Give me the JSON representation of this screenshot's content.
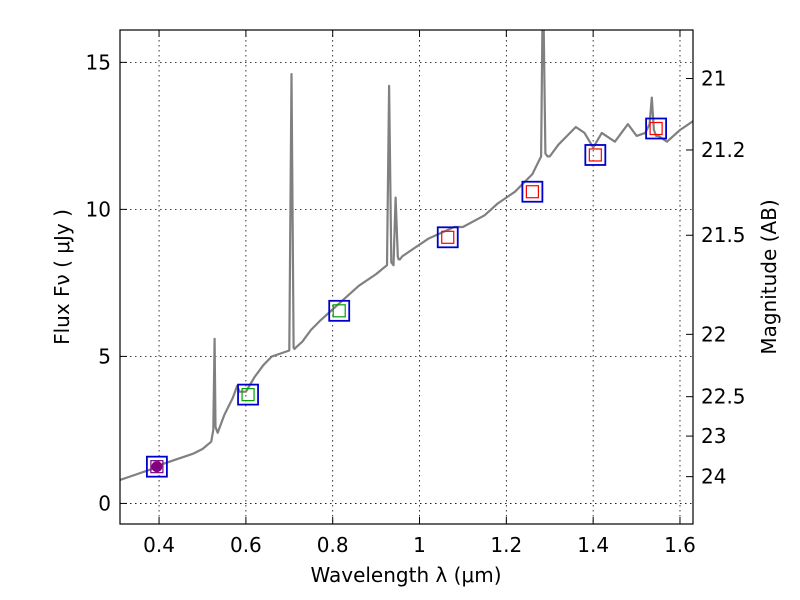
{
  "chart_data": {
    "type": "line",
    "xlabel": "Wavelength  λ (μm)",
    "ylabel": "Flux  Fν  ( μJy )",
    "y2label": "Magnitude (AB)",
    "xlim": [
      0.31,
      1.63
    ],
    "ylim": [
      -0.7,
      16.1
    ],
    "grid": true,
    "x_ticks": [
      {
        "value": 0.4,
        "label": "0.4"
      },
      {
        "value": 0.6,
        "label": "0.6"
      },
      {
        "value": 0.8,
        "label": "0.8"
      },
      {
        "value": 1.0,
        "label": "1"
      },
      {
        "value": 1.2,
        "label": "1.2"
      },
      {
        "value": 1.4,
        "label": "1.4"
      },
      {
        "value": 1.6,
        "label": "1.6"
      }
    ],
    "y_ticks": [
      {
        "value": 0,
        "label": "0"
      },
      {
        "value": 5,
        "label": "5"
      },
      {
        "value": 10,
        "label": "10"
      },
      {
        "value": 15,
        "label": "15"
      }
    ],
    "y2_ticks": [
      {
        "flux": 14.45,
        "label": "21"
      },
      {
        "flux": 12.02,
        "label": "21.2"
      },
      {
        "flux": 9.12,
        "label": "21.5"
      },
      {
        "flux": 5.75,
        "label": "22"
      },
      {
        "flux": 3.63,
        "label": "22.5"
      },
      {
        "flux": 2.29,
        "label": "23"
      },
      {
        "flux": 0.91,
        "label": "24"
      }
    ],
    "series": [
      {
        "name": "spectrum",
        "color": "#808080",
        "x": [
          0.31,
          0.33,
          0.35,
          0.37,
          0.39,
          0.4,
          0.42,
          0.44,
          0.46,
          0.48,
          0.5,
          0.52,
          0.525,
          0.528,
          0.53,
          0.535,
          0.55,
          0.57,
          0.58,
          0.585,
          0.6,
          0.62,
          0.64,
          0.66,
          0.68,
          0.7,
          0.705,
          0.71,
          0.712,
          0.715,
          0.73,
          0.75,
          0.77,
          0.8,
          0.83,
          0.86,
          0.9,
          0.925,
          0.93,
          0.935,
          0.94,
          0.945,
          0.95,
          0.952,
          0.955,
          0.96,
          0.98,
          1.0,
          1.02,
          1.05,
          1.08,
          1.1,
          1.15,
          1.18,
          1.2,
          1.22,
          1.24,
          1.26,
          1.27,
          1.28,
          1.283,
          1.286,
          1.29,
          1.295,
          1.3,
          1.32,
          1.34,
          1.36,
          1.38,
          1.4,
          1.42,
          1.45,
          1.48,
          1.5,
          1.52,
          1.53,
          1.535,
          1.54,
          1.545,
          1.55,
          1.57,
          1.6,
          1.63
        ],
        "values": [
          0.8,
          0.9,
          1.0,
          1.1,
          1.2,
          1.3,
          1.4,
          1.5,
          1.6,
          1.7,
          1.85,
          2.1,
          2.5,
          5.6,
          2.6,
          2.4,
          3.0,
          3.6,
          4.0,
          3.8,
          3.8,
          4.3,
          4.7,
          5.0,
          5.1,
          5.2,
          14.6,
          5.3,
          5.25,
          5.3,
          5.5,
          5.9,
          6.2,
          6.6,
          7.0,
          7.4,
          7.8,
          8.1,
          14.2,
          8.2,
          8.1,
          10.4,
          8.4,
          8.3,
          8.3,
          8.4,
          8.6,
          8.8,
          9.0,
          9.2,
          9.4,
          9.4,
          9.8,
          10.2,
          10.4,
          10.6,
          10.9,
          11.2,
          11.5,
          11.8,
          16.2,
          16.2,
          11.9,
          11.8,
          11.8,
          12.2,
          12.5,
          12.8,
          12.6,
          12.1,
          12.6,
          12.3,
          12.9,
          12.5,
          12.6,
          12.9,
          13.8,
          12.7,
          12.5,
          12.5,
          12.3,
          12.7,
          13.0
        ]
      }
    ],
    "photometry": [
      {
        "x": 0.395,
        "flux": 1.25,
        "model_color": "#800080"
      },
      {
        "x": 0.605,
        "flux": 3.7,
        "model_color": "#00a000"
      },
      {
        "x": 0.815,
        "flux": 6.55,
        "model_color": "#00a000"
      },
      {
        "x": 1.065,
        "flux": 9.05,
        "model_color": "#ff0000"
      },
      {
        "x": 1.26,
        "flux": 10.6,
        "model_color": "#ff0000"
      },
      {
        "x": 1.405,
        "flux": 11.85,
        "model_color": "#ff0000"
      },
      {
        "x": 1.545,
        "flux": 12.75,
        "model_color": "#ff0000"
      }
    ],
    "colors": {
      "spectrum": "#808080",
      "box": "#0000cc",
      "axes": "#000000",
      "grid": "#000000"
    }
  }
}
